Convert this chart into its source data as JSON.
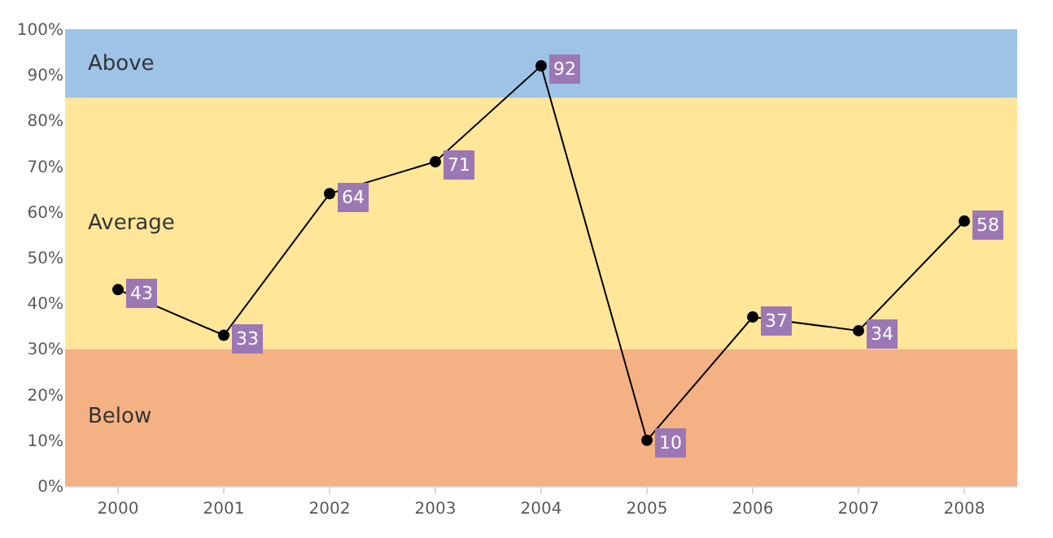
{
  "chart_data": {
    "type": "line",
    "categories": [
      "2000",
      "2001",
      "2002",
      "2003",
      "2004",
      "2005",
      "2006",
      "2007",
      "2008"
    ],
    "series": [
      {
        "color": "#000000",
        "values": [
          43,
          33,
          64,
          71,
          92,
          10,
          37,
          34,
          58
        ]
      }
    ],
    "ylim": [
      0,
      100
    ],
    "yticks": [
      {
        "value": 0,
        "label": "0%"
      },
      {
        "value": 10,
        "label": "10%"
      },
      {
        "value": 20,
        "label": "20%"
      },
      {
        "value": 30,
        "label": "30%"
      },
      {
        "value": 40,
        "label": "40%"
      },
      {
        "value": 50,
        "label": "50%"
      },
      {
        "value": 60,
        "label": "60%"
      },
      {
        "value": 70,
        "label": "70%"
      },
      {
        "value": 80,
        "label": "80%"
      },
      {
        "value": 90,
        "label": "90%"
      },
      {
        "value": 100,
        "label": "100%"
      }
    ],
    "bands": [
      {
        "axis": "y",
        "from": 0,
        "to": 30,
        "label": "Below",
        "color": "#f4b183"
      },
      {
        "axis": "y",
        "from": 30,
        "to": 85,
        "label": "Average",
        "color": "#ffe699"
      },
      {
        "axis": "y",
        "from": 85,
        "to": 100,
        "label": "Above",
        "color": "#9dc3e6"
      }
    ],
    "marker": "circle",
    "line_style": "solid",
    "data_labels": true,
    "grid": false
  }
}
